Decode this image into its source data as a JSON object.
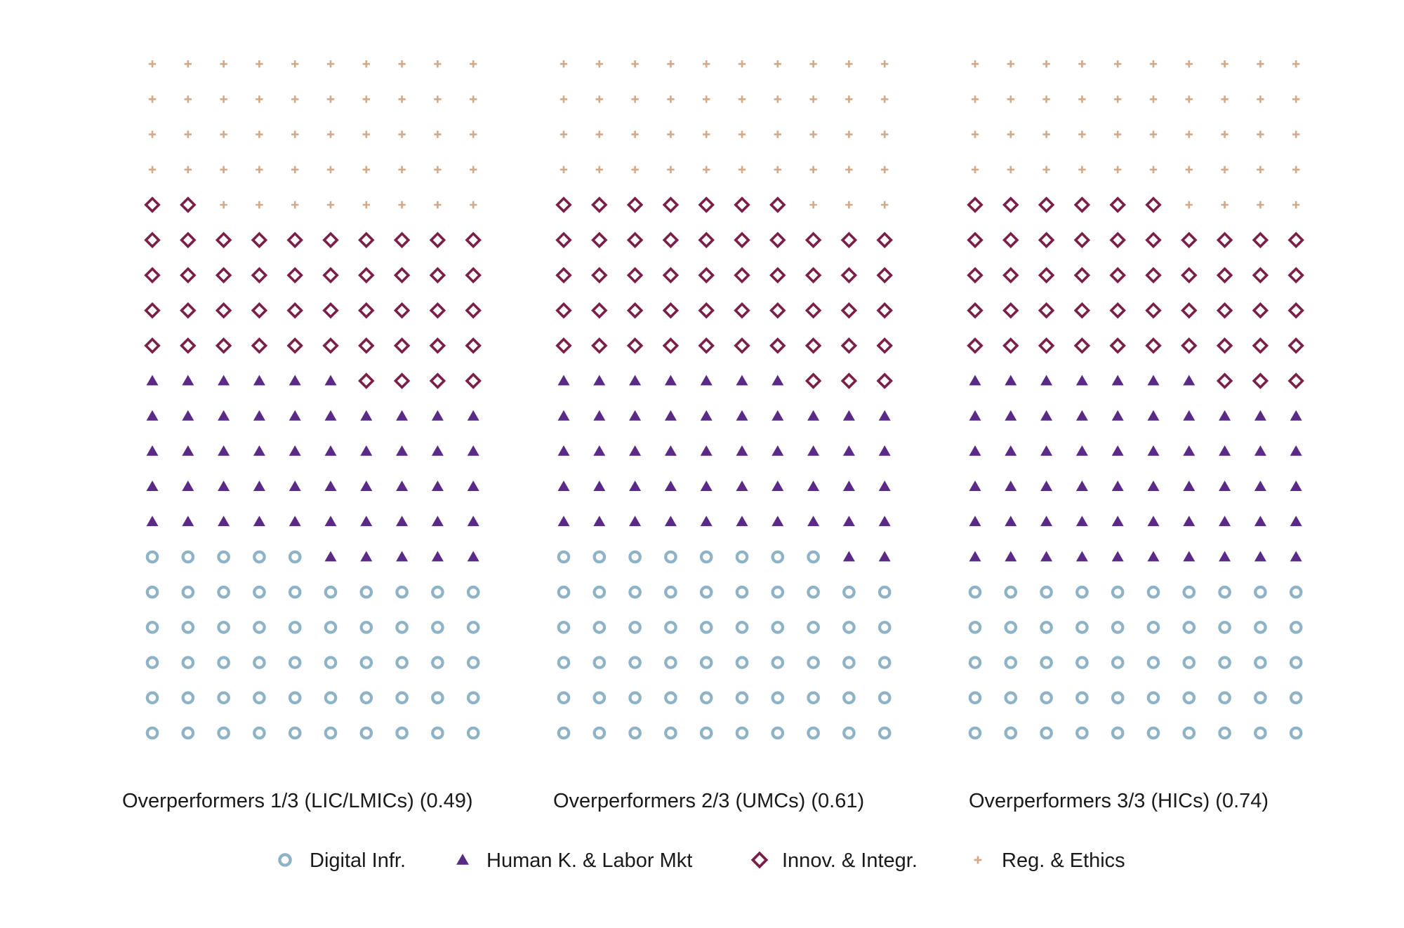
{
  "chart_data": {
    "type": "waffle",
    "grid": {
      "columns": 10,
      "rows": 20,
      "fill_order": "bottom-to-top, left-to-right within row"
    },
    "colors": {
      "Digital Infr.": "#8FB3C6",
      "Human K. & Labor Mkt": "#5A2A86",
      "Innov. & Integr.": "#7A1F47",
      "Reg. & Ethics": "#D2A989"
    },
    "markers": {
      "Digital Infr.": "ring",
      "Human K. & Labor Mkt": "triangle",
      "Innov. & Integr.": "diamond",
      "Reg. & Ethics": "plus"
    },
    "legend": {
      "position": "bottom",
      "items": [
        "Digital Infr.",
        "Human K. & Labor Mkt",
        "Innov. & Integr.",
        "Reg. & Ethics"
      ]
    },
    "panels": [
      {
        "label": "Overperformers 1/3 (LIC/LMICs) (0.49)",
        "counts": {
          "Digital Infr.": 55,
          "Human K. & Labor Mkt": 51,
          "Innov. & Integr.": 46,
          "Reg. & Ethics": 48
        }
      },
      {
        "label": "Overperformers 2/3 (UMCs) (0.61)",
        "counts": {
          "Digital Infr.": 58,
          "Human K. & Labor Mkt": 49,
          "Innov. & Integr.": 50,
          "Reg. & Ethics": 43
        }
      },
      {
        "label": "Overperformers 3/3 (HICs) (0.74)",
        "counts": {
          "Digital Infr.": 50,
          "Human K. & Labor Mkt": 57,
          "Innov. & Integr.": 49,
          "Reg. & Ethics": 44
        }
      }
    ]
  }
}
